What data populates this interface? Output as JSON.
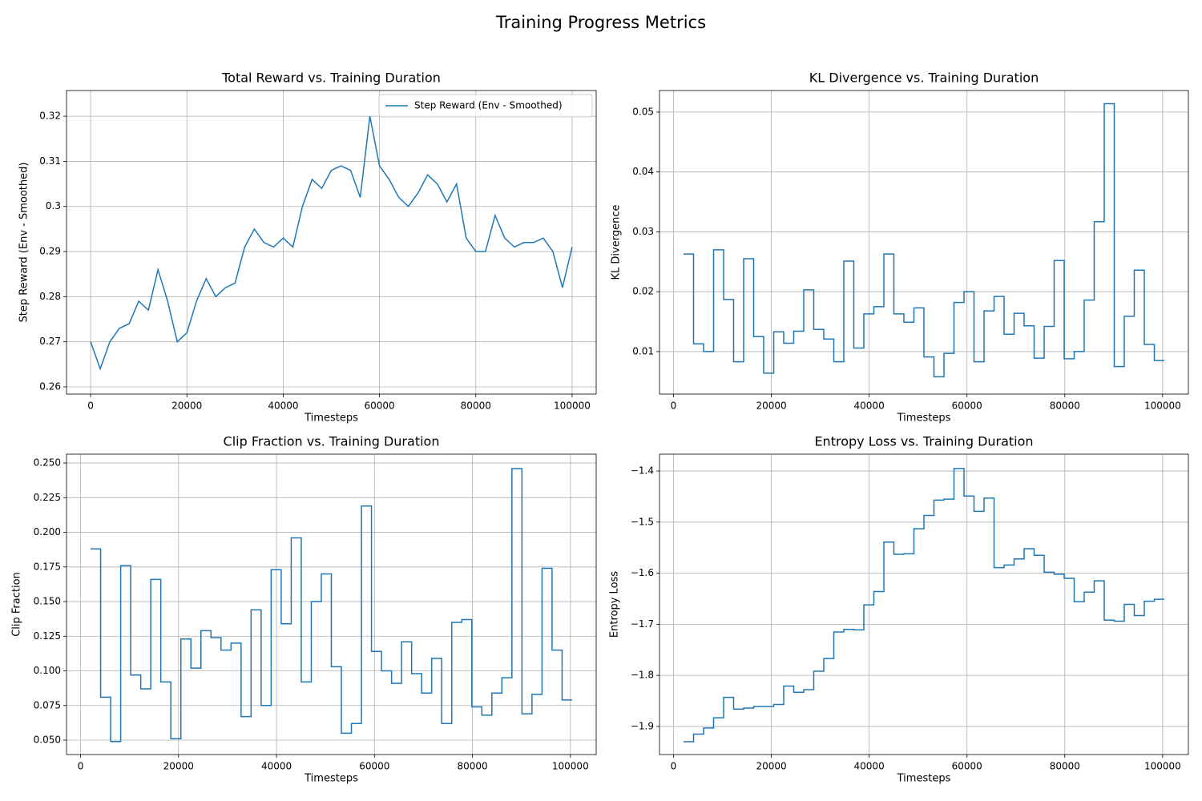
{
  "title": "Training Progress Metrics",
  "chart_data": [
    {
      "type": "line",
      "title": "Total Reward vs. Training Duration",
      "xlabel": "Timesteps",
      "ylabel": "Step Reward (Env - Smoothed)",
      "x": [
        0,
        2000,
        4000,
        6000,
        8000,
        10000,
        12000,
        14000,
        16000,
        18000,
        20000,
        22000,
        24000,
        26000,
        28000,
        30000,
        32000,
        34000,
        36000,
        38000,
        40000,
        42000,
        44000,
        46000,
        48000,
        50000,
        52000,
        54000,
        56000,
        58000,
        60000,
        62000,
        64000,
        66000,
        68000,
        70000,
        72000,
        74000,
        76000,
        78000,
        80000,
        82000,
        84000,
        86000,
        88000,
        90000,
        92000,
        94000,
        96000,
        98000,
        100000
      ],
      "series": [
        {
          "name": "Step Reward (Env - Smoothed)",
          "color": "#1f77b4",
          "values": [
            0.27,
            0.264,
            0.27,
            0.273,
            0.274,
            0.279,
            0.277,
            0.286,
            0.279,
            0.27,
            0.272,
            0.279,
            0.284,
            0.28,
            0.282,
            0.283,
            0.291,
            0.295,
            0.292,
            0.291,
            0.293,
            0.291,
            0.3,
            0.306,
            0.304,
            0.308,
            0.309,
            0.308,
            0.302,
            0.32,
            0.309,
            0.306,
            0.302,
            0.3,
            0.303,
            0.307,
            0.305,
            0.301,
            0.305,
            0.293,
            0.29,
            0.29,
            0.298,
            0.293,
            0.291,
            0.292,
            0.292,
            0.293,
            0.29,
            0.282,
            0.291
          ]
        }
      ],
      "legend": "upper right",
      "grid": true,
      "xlim": [
        -5000,
        105000
      ],
      "xticks": [
        0,
        20000,
        40000,
        60000,
        80000,
        100000
      ],
      "ylim": [
        0.2584,
        0.3257
      ],
      "yticks": [
        0.26,
        0.27,
        0.28,
        0.29,
        0.3,
        0.31,
        0.32
      ]
    },
    {
      "type": "step",
      "title": "KL Divergence vs. Training Duration",
      "xlabel": "Timesteps",
      "ylabel": "KL Divergence",
      "x": [
        2048,
        4096,
        6144,
        8192,
        10240,
        12288,
        14336,
        16384,
        18432,
        20480,
        22528,
        24576,
        26624,
        28672,
        30720,
        32768,
        34816,
        36864,
        38912,
        40960,
        43008,
        45056,
        47104,
        49152,
        51200,
        53248,
        55296,
        57344,
        59392,
        61440,
        63488,
        65536,
        67584,
        69632,
        71680,
        73728,
        75776,
        77824,
        79872,
        81920,
        83968,
        86016,
        88064,
        90112,
        92160,
        94208,
        96256,
        98304,
        100352
      ],
      "series": [
        {
          "color": "#1f77b4",
          "values": [
            0.0263,
            0.0113,
            0.01,
            0.027,
            0.0187,
            0.0083,
            0.0255,
            0.0125,
            0.0064,
            0.0133,
            0.0114,
            0.0134,
            0.0203,
            0.0137,
            0.0121,
            0.0083,
            0.0251,
            0.0106,
            0.0163,
            0.0175,
            0.0263,
            0.0163,
            0.0149,
            0.0173,
            0.0091,
            0.0058,
            0.0097,
            0.0182,
            0.02,
            0.0083,
            0.0168,
            0.0192,
            0.0129,
            0.0164,
            0.0143,
            0.0089,
            0.0142,
            0.0252,
            0.0088,
            0.01,
            0.0186,
            0.0317,
            0.0514,
            0.0075,
            0.0159,
            0.0236,
            0.0112,
            0.0085,
            0.0085
          ]
        }
      ],
      "grid": true,
      "xlim": [
        -2867,
        105267
      ],
      "xticks": [
        0,
        20000,
        40000,
        60000,
        80000,
        100000
      ],
      "ylim": [
        0.0029,
        0.0536
      ],
      "yticks": [
        0.01,
        0.02,
        0.03,
        0.04,
        0.05
      ]
    },
    {
      "type": "step",
      "title": "Clip Fraction vs. Training Duration",
      "xlabel": "Timesteps",
      "ylabel": "Clip Fraction",
      "x": [
        2048,
        4096,
        6144,
        8192,
        10240,
        12288,
        14336,
        16384,
        18432,
        20480,
        22528,
        24576,
        26624,
        28672,
        30720,
        32768,
        34816,
        36864,
        38912,
        40960,
        43008,
        45056,
        47104,
        49152,
        51200,
        53248,
        55296,
        57344,
        59392,
        61440,
        63488,
        65536,
        67584,
        69632,
        71680,
        73728,
        75776,
        77824,
        79872,
        81920,
        83968,
        86016,
        88064,
        90112,
        92160,
        94208,
        96256,
        98304,
        100352
      ],
      "series": [
        {
          "color": "#1f77b4",
          "values": [
            0.188,
            0.081,
            0.049,
            0.176,
            0.097,
            0.087,
            0.166,
            0.092,
            0.051,
            0.123,
            0.102,
            0.129,
            0.124,
            0.115,
            0.12,
            0.067,
            0.144,
            0.075,
            0.173,
            0.134,
            0.196,
            0.092,
            0.15,
            0.17,
            0.103,
            0.055,
            0.062,
            0.219,
            0.114,
            0.1,
            0.091,
            0.121,
            0.098,
            0.084,
            0.109,
            0.062,
            0.135,
            0.137,
            0.074,
            0.068,
            0.084,
            0.095,
            0.246,
            0.069,
            0.083,
            0.174,
            0.115,
            0.079,
            0.079
          ]
        }
      ],
      "grid": true,
      "xlim": [
        -2867,
        105267
      ],
      "xticks": [
        0,
        20000,
        40000,
        60000,
        80000,
        100000
      ],
      "ylim": [
        0.0396,
        0.2564
      ],
      "yticks": [
        {
          "value": 0.05,
          "label": "0.050"
        },
        {
          "value": 0.075,
          "label": "0.075"
        },
        {
          "value": 0.1,
          "label": "0.100"
        },
        {
          "value": 0.125,
          "label": "0.125"
        },
        {
          "value": 0.15,
          "label": "0.150"
        },
        {
          "value": 0.175,
          "label": "0.175"
        },
        {
          "value": 0.2,
          "label": "0.200"
        },
        {
          "value": 0.225,
          "label": "0.225"
        },
        {
          "value": 0.25,
          "label": "0.250"
        }
      ]
    },
    {
      "type": "step",
      "title": "Entropy Loss vs. Training Duration",
      "xlabel": "Timesteps",
      "ylabel": "Entropy Loss",
      "x": [
        2048,
        4096,
        6144,
        8192,
        10240,
        12288,
        14336,
        16384,
        18432,
        20480,
        22528,
        24576,
        26624,
        28672,
        30720,
        32768,
        34816,
        36864,
        38912,
        40960,
        43008,
        45056,
        47104,
        49152,
        51200,
        53248,
        55296,
        57344,
        59392,
        61440,
        63488,
        65536,
        67584,
        69632,
        71680,
        73728,
        75776,
        77824,
        79872,
        81920,
        83968,
        86016,
        88064,
        90112,
        92160,
        94208,
        96256,
        98304,
        100352
      ],
      "series": [
        {
          "color": "#1f77b4",
          "values": [
            -1.93,
            -1.915,
            -1.903,
            -1.883,
            -1.843,
            -1.866,
            -1.864,
            -1.861,
            -1.861,
            -1.857,
            -1.821,
            -1.833,
            -1.828,
            -1.792,
            -1.767,
            -1.715,
            -1.71,
            -1.711,
            -1.662,
            -1.636,
            -1.539,
            -1.563,
            -1.562,
            -1.513,
            -1.487,
            -1.457,
            -1.455,
            -1.395,
            -1.449,
            -1.479,
            -1.453,
            -1.589,
            -1.584,
            -1.572,
            -1.552,
            -1.565,
            -1.598,
            -1.602,
            -1.61,
            -1.656,
            -1.637,
            -1.615,
            -1.692,
            -1.694,
            -1.661,
            -1.683,
            -1.655,
            -1.651,
            -1.651
          ]
        }
      ],
      "grid": true,
      "xlim": [
        -2867,
        105267
      ],
      "xticks": [
        0,
        20000,
        40000,
        60000,
        80000,
        100000
      ],
      "ylim": [
        -1.955,
        -1.367
      ],
      "yticks": [
        {
          "value": -1.9,
          "label": "−1.9"
        },
        {
          "value": -1.8,
          "label": "−1.8"
        },
        {
          "value": -1.7,
          "label": "−1.7"
        },
        {
          "value": -1.6,
          "label": "−1.6"
        },
        {
          "value": -1.5,
          "label": "−1.5"
        },
        {
          "value": -1.4,
          "label": "−1.4"
        }
      ]
    }
  ]
}
